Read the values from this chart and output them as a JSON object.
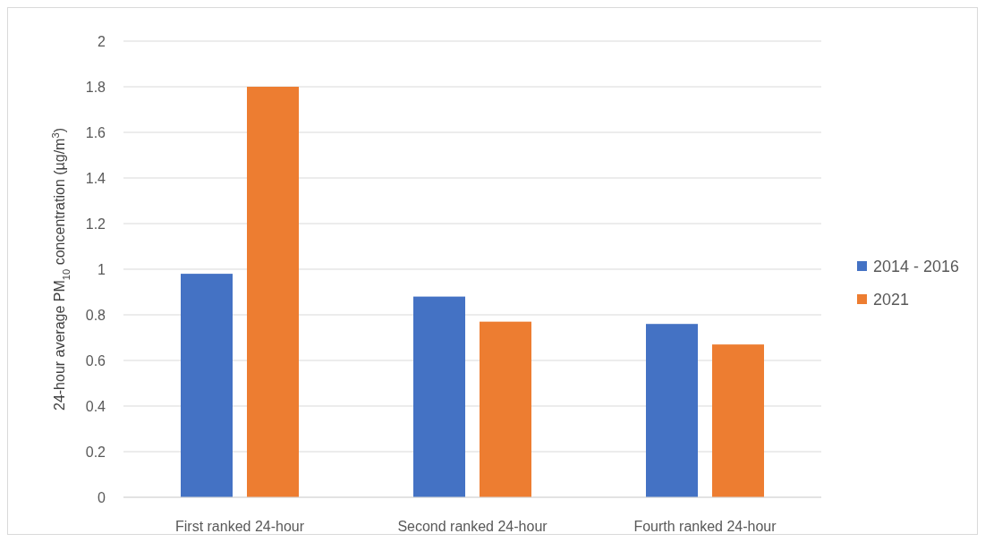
{
  "chart_data": {
    "type": "bar",
    "ylabel": "24-hour average PM$_{10}$ concentration (µg/m$^{3}$)",
    "categories": [
      "First ranked 24-hour",
      "Second ranked 24-hour",
      "Fourth ranked 24-hour"
    ],
    "series": [
      {
        "name": "2014 - 2016",
        "color": "#4472c4",
        "values": [
          0.98,
          0.88,
          0.76
        ]
      },
      {
        "name": "2021",
        "color": "#ed7d31",
        "values": [
          1.8,
          0.77,
          0.67
        ]
      }
    ],
    "ylim": [
      0,
      2
    ],
    "yticks": [
      0,
      0.2,
      0.4,
      0.6,
      0.8,
      1,
      1.2,
      1.4,
      1.6,
      1.8,
      2
    ],
    "grid": "y",
    "legend": "right"
  }
}
